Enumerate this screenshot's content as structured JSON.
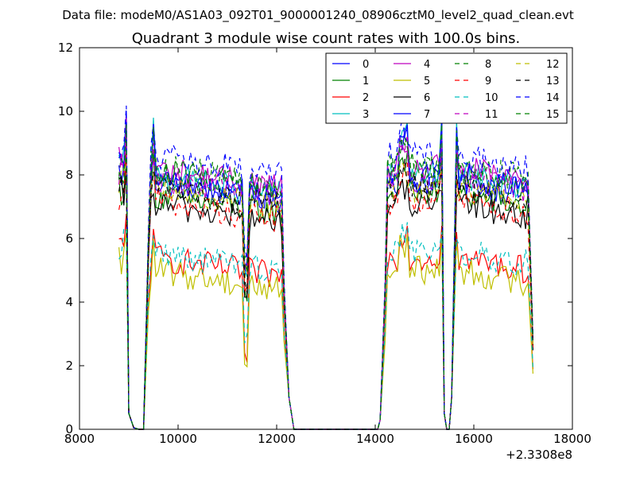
{
  "chart_data": {
    "type": "line",
    "suptitle": "Data file: modeM0/AS1A03_092T01_9000001240_08906cztM0_level2_quad_clean.evt",
    "title": "Quadrant 3 module wise count rates with 100.0s bins.",
    "xlabel": "",
    "ylabel": "",
    "xlim": [
      8000,
      18000
    ],
    "ylim": [
      0,
      12
    ],
    "xticks": [
      8000,
      10000,
      12000,
      14000,
      16000,
      18000
    ],
    "yticks": [
      0,
      2,
      4,
      6,
      8,
      10,
      12
    ],
    "x_offset_label": "+2.3308e8",
    "legend_position": "top-right",
    "legend_ncols": 4,
    "segments": [
      {
        "name": "segment-1",
        "x_start": 8800,
        "x_end": 9300,
        "gap_end": 9300
      },
      {
        "name": "segment-2",
        "x_start": 9300,
        "x_end": 12200,
        "gap_end": 14100
      },
      {
        "name": "segment-3",
        "x_start": 14100,
        "x_end": 15400,
        "gap_end": 15500
      },
      {
        "name": "segment-4",
        "x_start": 15500,
        "x_end": 17200,
        "gap_end": 17200
      }
    ],
    "series": [
      {
        "name": "0",
        "color": "#0000ff",
        "dash": "solid",
        "level": 7.8,
        "peak": 9.8
      },
      {
        "name": "1",
        "color": "#008000",
        "dash": "solid",
        "level": 7.4,
        "peak": 9.0
      },
      {
        "name": "2",
        "color": "#ff0000",
        "dash": "solid",
        "level": 5.4,
        "peak": 6.5
      },
      {
        "name": "3",
        "color": "#00bfbf",
        "dash": "solid",
        "level": 8.0,
        "peak": 10.0
      },
      {
        "name": "4",
        "color": "#bf00bf",
        "dash": "solid",
        "level": 8.2,
        "peak": 8.6
      },
      {
        "name": "5",
        "color": "#bfbf00",
        "dash": "solid",
        "level": 5.0,
        "peak": 6.2
      },
      {
        "name": "6",
        "color": "#000000",
        "dash": "solid",
        "level": 7.1,
        "peak": 7.6
      },
      {
        "name": "7",
        "color": "#0000ff",
        "dash": "solid",
        "level": 7.9,
        "peak": 9.8
      },
      {
        "name": "8",
        "color": "#008000",
        "dash": "dashed",
        "level": 8.3,
        "peak": 8.9
      },
      {
        "name": "9",
        "color": "#ff0000",
        "dash": "dashed",
        "level": 7.2,
        "peak": 8.3
      },
      {
        "name": "10",
        "color": "#00bfbf",
        "dash": "dashed",
        "level": 5.6,
        "peak": 6.3
      },
      {
        "name": "11",
        "color": "#bf00bf",
        "dash": "dashed",
        "level": 7.9,
        "peak": 9.2
      },
      {
        "name": "12",
        "color": "#bfbf00",
        "dash": "dashed",
        "level": 7.6,
        "peak": 8.2
      },
      {
        "name": "13",
        "color": "#000000",
        "dash": "dashed",
        "level": 7.6,
        "peak": 8.3
      },
      {
        "name": "14",
        "color": "#0000ff",
        "dash": "dashed",
        "level": 8.6,
        "peak": 9.8
      },
      {
        "name": "15",
        "color": "#008000",
        "dash": "dashed",
        "level": 8.1,
        "peak": 9.7
      }
    ]
  }
}
